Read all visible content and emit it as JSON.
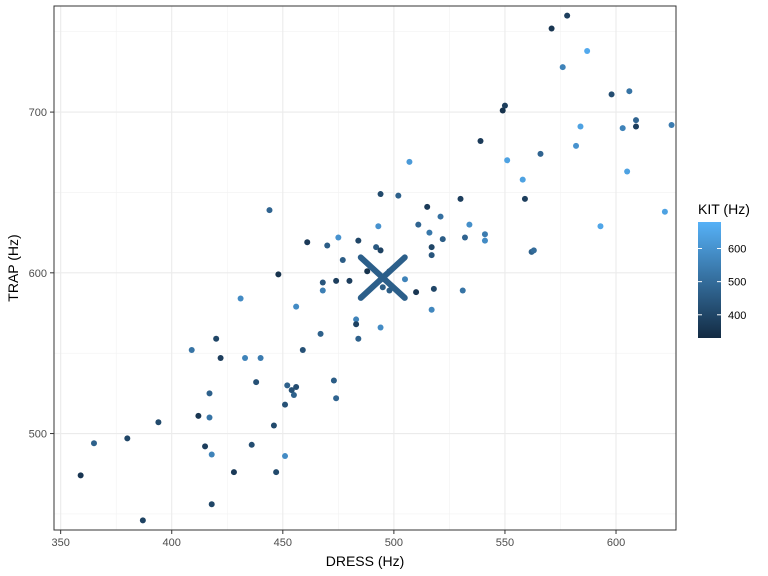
{
  "chart_data": {
    "type": "scatter",
    "xlabel": "DRESS (Hz)",
    "ylabel": "TRAP (Hz)",
    "xlim": [
      347,
      627
    ],
    "ylim": [
      440,
      766
    ],
    "x_ticks": [
      350,
      400,
      450,
      500,
      550,
      600
    ],
    "y_ticks": [
      500,
      600,
      700
    ],
    "grid": true,
    "legend": {
      "title": "KIT (Hz)",
      "placement": "right",
      "type": "colorbar",
      "range": [
        330,
        680
      ],
      "ticks": [
        400,
        500,
        600
      ],
      "color_low": "#132B43",
      "color_high": "#56B1F7"
    },
    "mean_marker": {
      "label": "",
      "x": 495,
      "y": 597,
      "color": "#2c5f8a",
      "shape": "x"
    },
    "points": [
      {
        "x": 359,
        "y": 474,
        "c": 360
      },
      {
        "x": 365,
        "y": 494,
        "c": 470
      },
      {
        "x": 380,
        "y": 497,
        "c": 400
      },
      {
        "x": 387,
        "y": 446,
        "c": 390
      },
      {
        "x": 394,
        "y": 507,
        "c": 410
      },
      {
        "x": 409,
        "y": 552,
        "c": 520
      },
      {
        "x": 412,
        "y": 511,
        "c": 360
      },
      {
        "x": 415,
        "y": 492,
        "c": 380
      },
      {
        "x": 417,
        "y": 525,
        "c": 470
      },
      {
        "x": 417,
        "y": 510,
        "c": 520
      },
      {
        "x": 418,
        "y": 456,
        "c": 400
      },
      {
        "x": 418,
        "y": 487,
        "c": 560
      },
      {
        "x": 420,
        "y": 559,
        "c": 400
      },
      {
        "x": 422,
        "y": 547,
        "c": 380
      },
      {
        "x": 428,
        "y": 476,
        "c": 370
      },
      {
        "x": 431,
        "y": 584,
        "c": 580
      },
      {
        "x": 433,
        "y": 547,
        "c": 560
      },
      {
        "x": 436,
        "y": 493,
        "c": 420
      },
      {
        "x": 438,
        "y": 532,
        "c": 430
      },
      {
        "x": 440,
        "y": 547,
        "c": 540
      },
      {
        "x": 444,
        "y": 639,
        "c": 480
      },
      {
        "x": 446,
        "y": 505,
        "c": 410
      },
      {
        "x": 447,
        "y": 476,
        "c": 410
      },
      {
        "x": 448,
        "y": 599,
        "c": 350
      },
      {
        "x": 451,
        "y": 486,
        "c": 580
      },
      {
        "x": 451,
        "y": 518,
        "c": 430
      },
      {
        "x": 452,
        "y": 530,
        "c": 470
      },
      {
        "x": 454,
        "y": 527,
        "c": 430
      },
      {
        "x": 455,
        "y": 524,
        "c": 470
      },
      {
        "x": 456,
        "y": 579,
        "c": 580
      },
      {
        "x": 456,
        "y": 529,
        "c": 420
      },
      {
        "x": 459,
        "y": 552,
        "c": 430
      },
      {
        "x": 461,
        "y": 619,
        "c": 370
      },
      {
        "x": 467,
        "y": 562,
        "c": 470
      },
      {
        "x": 468,
        "y": 594,
        "c": 440
      },
      {
        "x": 468,
        "y": 589,
        "c": 550
      },
      {
        "x": 470,
        "y": 617,
        "c": 460
      },
      {
        "x": 473,
        "y": 533,
        "c": 460
      },
      {
        "x": 474,
        "y": 522,
        "c": 480
      },
      {
        "x": 474,
        "y": 595,
        "c": 380
      },
      {
        "x": 475,
        "y": 622,
        "c": 600
      },
      {
        "x": 477,
        "y": 608,
        "c": 460
      },
      {
        "x": 480,
        "y": 595,
        "c": 380
      },
      {
        "x": 483,
        "y": 571,
        "c": 560
      },
      {
        "x": 483,
        "y": 568,
        "c": 390
      },
      {
        "x": 484,
        "y": 559,
        "c": 470
      },
      {
        "x": 484,
        "y": 620,
        "c": 400
      },
      {
        "x": 488,
        "y": 601,
        "c": 350
      },
      {
        "x": 492,
        "y": 616,
        "c": 450
      },
      {
        "x": 493,
        "y": 629,
        "c": 600
      },
      {
        "x": 494,
        "y": 566,
        "c": 580
      },
      {
        "x": 494,
        "y": 614,
        "c": 390
      },
      {
        "x": 494,
        "y": 649,
        "c": 410
      },
      {
        "x": 495,
        "y": 591,
        "c": 460
      },
      {
        "x": 498,
        "y": 589,
        "c": 460
      },
      {
        "x": 498,
        "y": 601,
        "c": 380
      },
      {
        "x": 502,
        "y": 648,
        "c": 470
      },
      {
        "x": 505,
        "y": 596,
        "c": 560
      },
      {
        "x": 507,
        "y": 669,
        "c": 620
      },
      {
        "x": 510,
        "y": 588,
        "c": 360
      },
      {
        "x": 511,
        "y": 630,
        "c": 480
      },
      {
        "x": 515,
        "y": 641,
        "c": 370
      },
      {
        "x": 516,
        "y": 625,
        "c": 530
      },
      {
        "x": 517,
        "y": 577,
        "c": 570
      },
      {
        "x": 517,
        "y": 611,
        "c": 440
      },
      {
        "x": 517,
        "y": 616,
        "c": 400
      },
      {
        "x": 518,
        "y": 590,
        "c": 400
      },
      {
        "x": 521,
        "y": 635,
        "c": 510
      },
      {
        "x": 522,
        "y": 621,
        "c": 460
      },
      {
        "x": 530,
        "y": 646,
        "c": 380
      },
      {
        "x": 531,
        "y": 589,
        "c": 520
      },
      {
        "x": 532,
        "y": 622,
        "c": 480
      },
      {
        "x": 534,
        "y": 630,
        "c": 590
      },
      {
        "x": 539,
        "y": 682,
        "c": 370
      },
      {
        "x": 541,
        "y": 624,
        "c": 540
      },
      {
        "x": 541,
        "y": 620,
        "c": 580
      },
      {
        "x": 549,
        "y": 701,
        "c": 350
      },
      {
        "x": 550,
        "y": 704,
        "c": 380
      },
      {
        "x": 551,
        "y": 670,
        "c": 640
      },
      {
        "x": 558,
        "y": 658,
        "c": 640
      },
      {
        "x": 559,
        "y": 646,
        "c": 380
      },
      {
        "x": 562,
        "y": 613,
        "c": 470
      },
      {
        "x": 563,
        "y": 614,
        "c": 500
      },
      {
        "x": 566,
        "y": 674,
        "c": 480
      },
      {
        "x": 571,
        "y": 752,
        "c": 360
      },
      {
        "x": 576,
        "y": 728,
        "c": 560
      },
      {
        "x": 578,
        "y": 760,
        "c": 380
      },
      {
        "x": 582,
        "y": 679,
        "c": 600
      },
      {
        "x": 584,
        "y": 691,
        "c": 640
      },
      {
        "x": 587,
        "y": 738,
        "c": 660
      },
      {
        "x": 593,
        "y": 629,
        "c": 650
      },
      {
        "x": 598,
        "y": 711,
        "c": 420
      },
      {
        "x": 603,
        "y": 690,
        "c": 560
      },
      {
        "x": 605,
        "y": 663,
        "c": 640
      },
      {
        "x": 606,
        "y": 713,
        "c": 520
      },
      {
        "x": 609,
        "y": 691,
        "c": 380
      },
      {
        "x": 609,
        "y": 695,
        "c": 480
      },
      {
        "x": 622,
        "y": 638,
        "c": 640
      },
      {
        "x": 625,
        "y": 692,
        "c": 540
      }
    ]
  }
}
